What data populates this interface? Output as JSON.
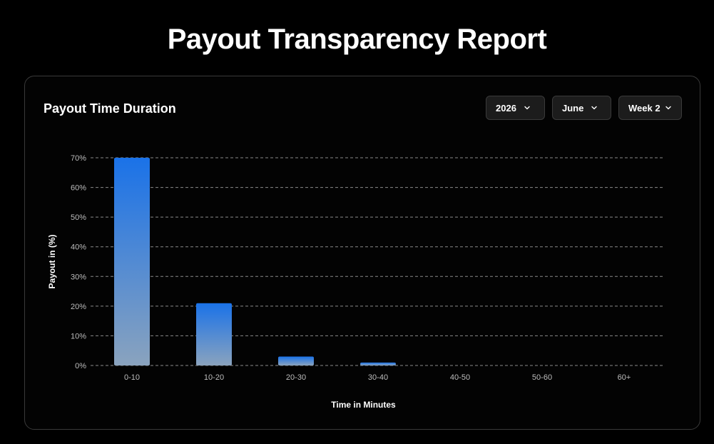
{
  "page": {
    "title": "Payout Transparency Report"
  },
  "card": {
    "title": "Payout Time Duration"
  },
  "filters": {
    "year": "2026",
    "month": "June",
    "week": "Week 2"
  },
  "icons": {
    "dropdown": "chevron-down-icon"
  },
  "colors": {
    "background": "#000000",
    "bar_top": "#1a72e8",
    "bar_bottom": "#8aa3be",
    "grid": "#8a8a8a",
    "card_border": "#3a3a3a"
  },
  "chart_data": {
    "type": "bar",
    "categories": [
      "0-10",
      "10-20",
      "20-30",
      "30-40",
      "40-50",
      "50-60",
      "60+"
    ],
    "values": [
      70,
      21,
      3,
      1,
      0,
      0,
      0
    ],
    "xlabel": "Time in Minutes",
    "ylabel": "Payout in (%)",
    "ylim": [
      0,
      70
    ],
    "yticks": [
      "0%",
      "10%",
      "20%",
      "30%",
      "40%",
      "50%",
      "60%",
      "70%"
    ],
    "grid": true,
    "grid_style": "dashed",
    "legend": "none"
  }
}
